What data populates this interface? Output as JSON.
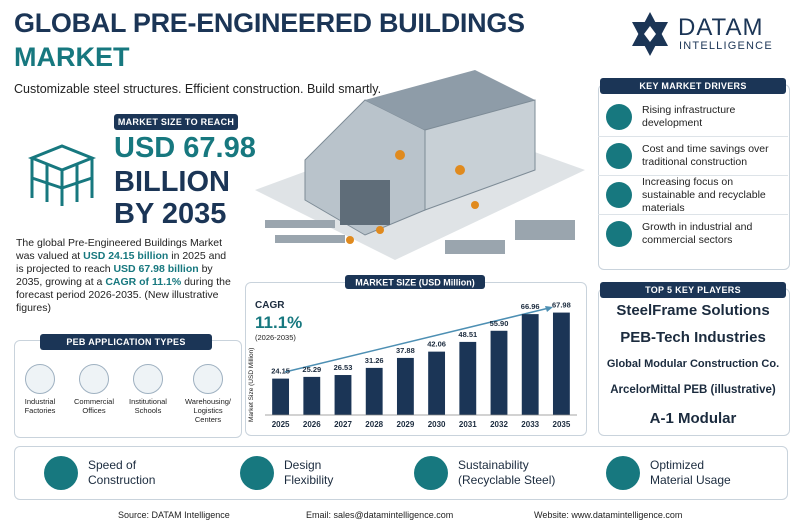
{
  "header": {
    "title_line1": "GLOBAL PRE-ENGINEERED BUILDINGS",
    "title_line2": "MARKET",
    "subtitle": "Customizable steel structures. Efficient construction. Build smartly.",
    "logo_name": "DATAM",
    "logo_sub": "INTELLIGENCE"
  },
  "market_size": {
    "label": "MARKET SIZE TO REACH",
    "line1": "USD 67.98",
    "line2": "BILLION",
    "line3": "BY 2035"
  },
  "description": [
    "The global Pre-Engineered Buildings Market was valued at ",
    "USD 24.15 billion",
    " in 2025 and is projected to reach ",
    "USD 67.98 billion",
    " by 2035, growing at a ",
    "CAGR of 11.1%",
    " during the forecast period 2026-2035. (New illustrative figures)"
  ],
  "applications": {
    "title": "PEB APPLICATION TYPES",
    "items": [
      "Industrial Factories",
      "Commercial Offices",
      "Institutional Schools",
      "Warehousing/ Logistics Centers"
    ]
  },
  "chart_data": {
    "type": "bar",
    "title": "MARKET SIZE (USD Million)",
    "y_label": "Market Size (USD Million)",
    "cagr_label": "CAGR",
    "cagr_value": "11.1%",
    "cagr_period": "(2026-2035)",
    "categories": [
      "2025",
      "2026",
      "2027",
      "2028",
      "2029",
      "2030",
      "2031",
      "2032",
      "2033",
      "2035"
    ],
    "values": [
      24.15,
      25.29,
      26.53,
      31.26,
      37.88,
      42.06,
      48.51,
      55.9,
      66.96,
      67.98
    ],
    "value_labels": [
      "24.15",
      "25.29",
      "26.53",
      "31.26",
      "37.88",
      "42.06",
      "48.51",
      "55.90",
      "66.96",
      "67.98"
    ],
    "color": "#1b3556",
    "ylim": [
      0,
      75
    ]
  },
  "drivers": {
    "title": "KEY MARKET DRIVERS",
    "items": [
      "Rising infrastructure development",
      "Cost and time savings over traditional construction",
      "Increasing focus on sustainable and recyclable materials",
      "Growth in industrial and commercial sectors"
    ]
  },
  "players": {
    "title": "TOP 5 KEY PLAYERS",
    "items": [
      "SteelFrame Solutions",
      "PEB-Tech Industries",
      "Global Modular Construction Co.",
      "ArcelorMittal PEB (illustrative)",
      "A-1 Modular"
    ]
  },
  "benefits": [
    [
      "Speed of",
      "Construction"
    ],
    [
      "Design",
      "Flexibility"
    ],
    [
      "Sustainability",
      "(Recyclable Steel)"
    ],
    [
      "Optimized",
      "Material Usage"
    ]
  ],
  "footer": {
    "source": "Source: DATAM Intelligence",
    "email": "Email: sales@datamintelligence.com",
    "website": "Website: www.datamintelligence.com"
  }
}
